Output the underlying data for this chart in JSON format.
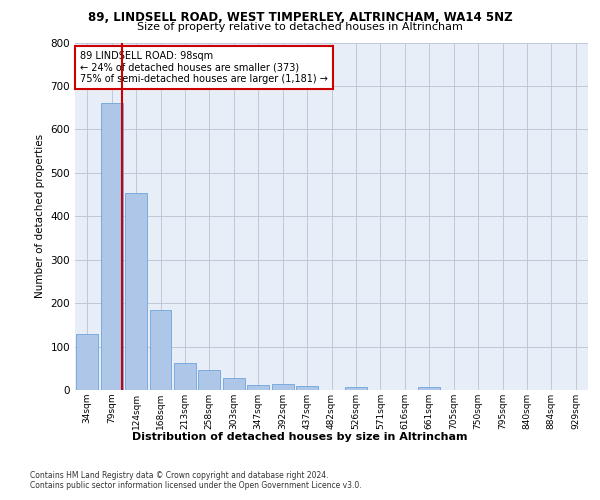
{
  "title1": "89, LINDSELL ROAD, WEST TIMPERLEY, ALTRINCHAM, WA14 5NZ",
  "title2": "Size of property relative to detached houses in Altrincham",
  "xlabel": "Distribution of detached houses by size in Altrincham",
  "ylabel": "Number of detached properties",
  "footer1": "Contains HM Land Registry data © Crown copyright and database right 2024.",
  "footer2": "Contains public sector information licensed under the Open Government Licence v3.0.",
  "categories": [
    "34sqm",
    "79sqm",
    "124sqm",
    "168sqm",
    "213sqm",
    "258sqm",
    "303sqm",
    "347sqm",
    "392sqm",
    "437sqm",
    "482sqm",
    "526sqm",
    "571sqm",
    "616sqm",
    "661sqm",
    "705sqm",
    "750sqm",
    "795sqm",
    "840sqm",
    "884sqm",
    "929sqm"
  ],
  "values": [
    128,
    660,
    453,
    184,
    62,
    47,
    28,
    12,
    14,
    10,
    0,
    6,
    0,
    0,
    8,
    0,
    0,
    0,
    0,
    0,
    0
  ],
  "bar_color": "#aec6e8",
  "bar_edge_color": "#5b9bd5",
  "property_line_color": "#cc0000",
  "property_line_x": 1.42,
  "annotation_text1": "89 LINDSELL ROAD: 98sqm",
  "annotation_text2": "← 24% of detached houses are smaller (373)",
  "annotation_text3": "75% of semi-detached houses are larger (1,181) →",
  "annotation_box_color": "#ffffff",
  "annotation_box_edge": "#cc0000",
  "ylim": [
    0,
    800
  ],
  "yticks": [
    0,
    100,
    200,
    300,
    400,
    500,
    600,
    700,
    800
  ],
  "background_color": "#e8eef8",
  "grid_color": "#c0c8d8"
}
